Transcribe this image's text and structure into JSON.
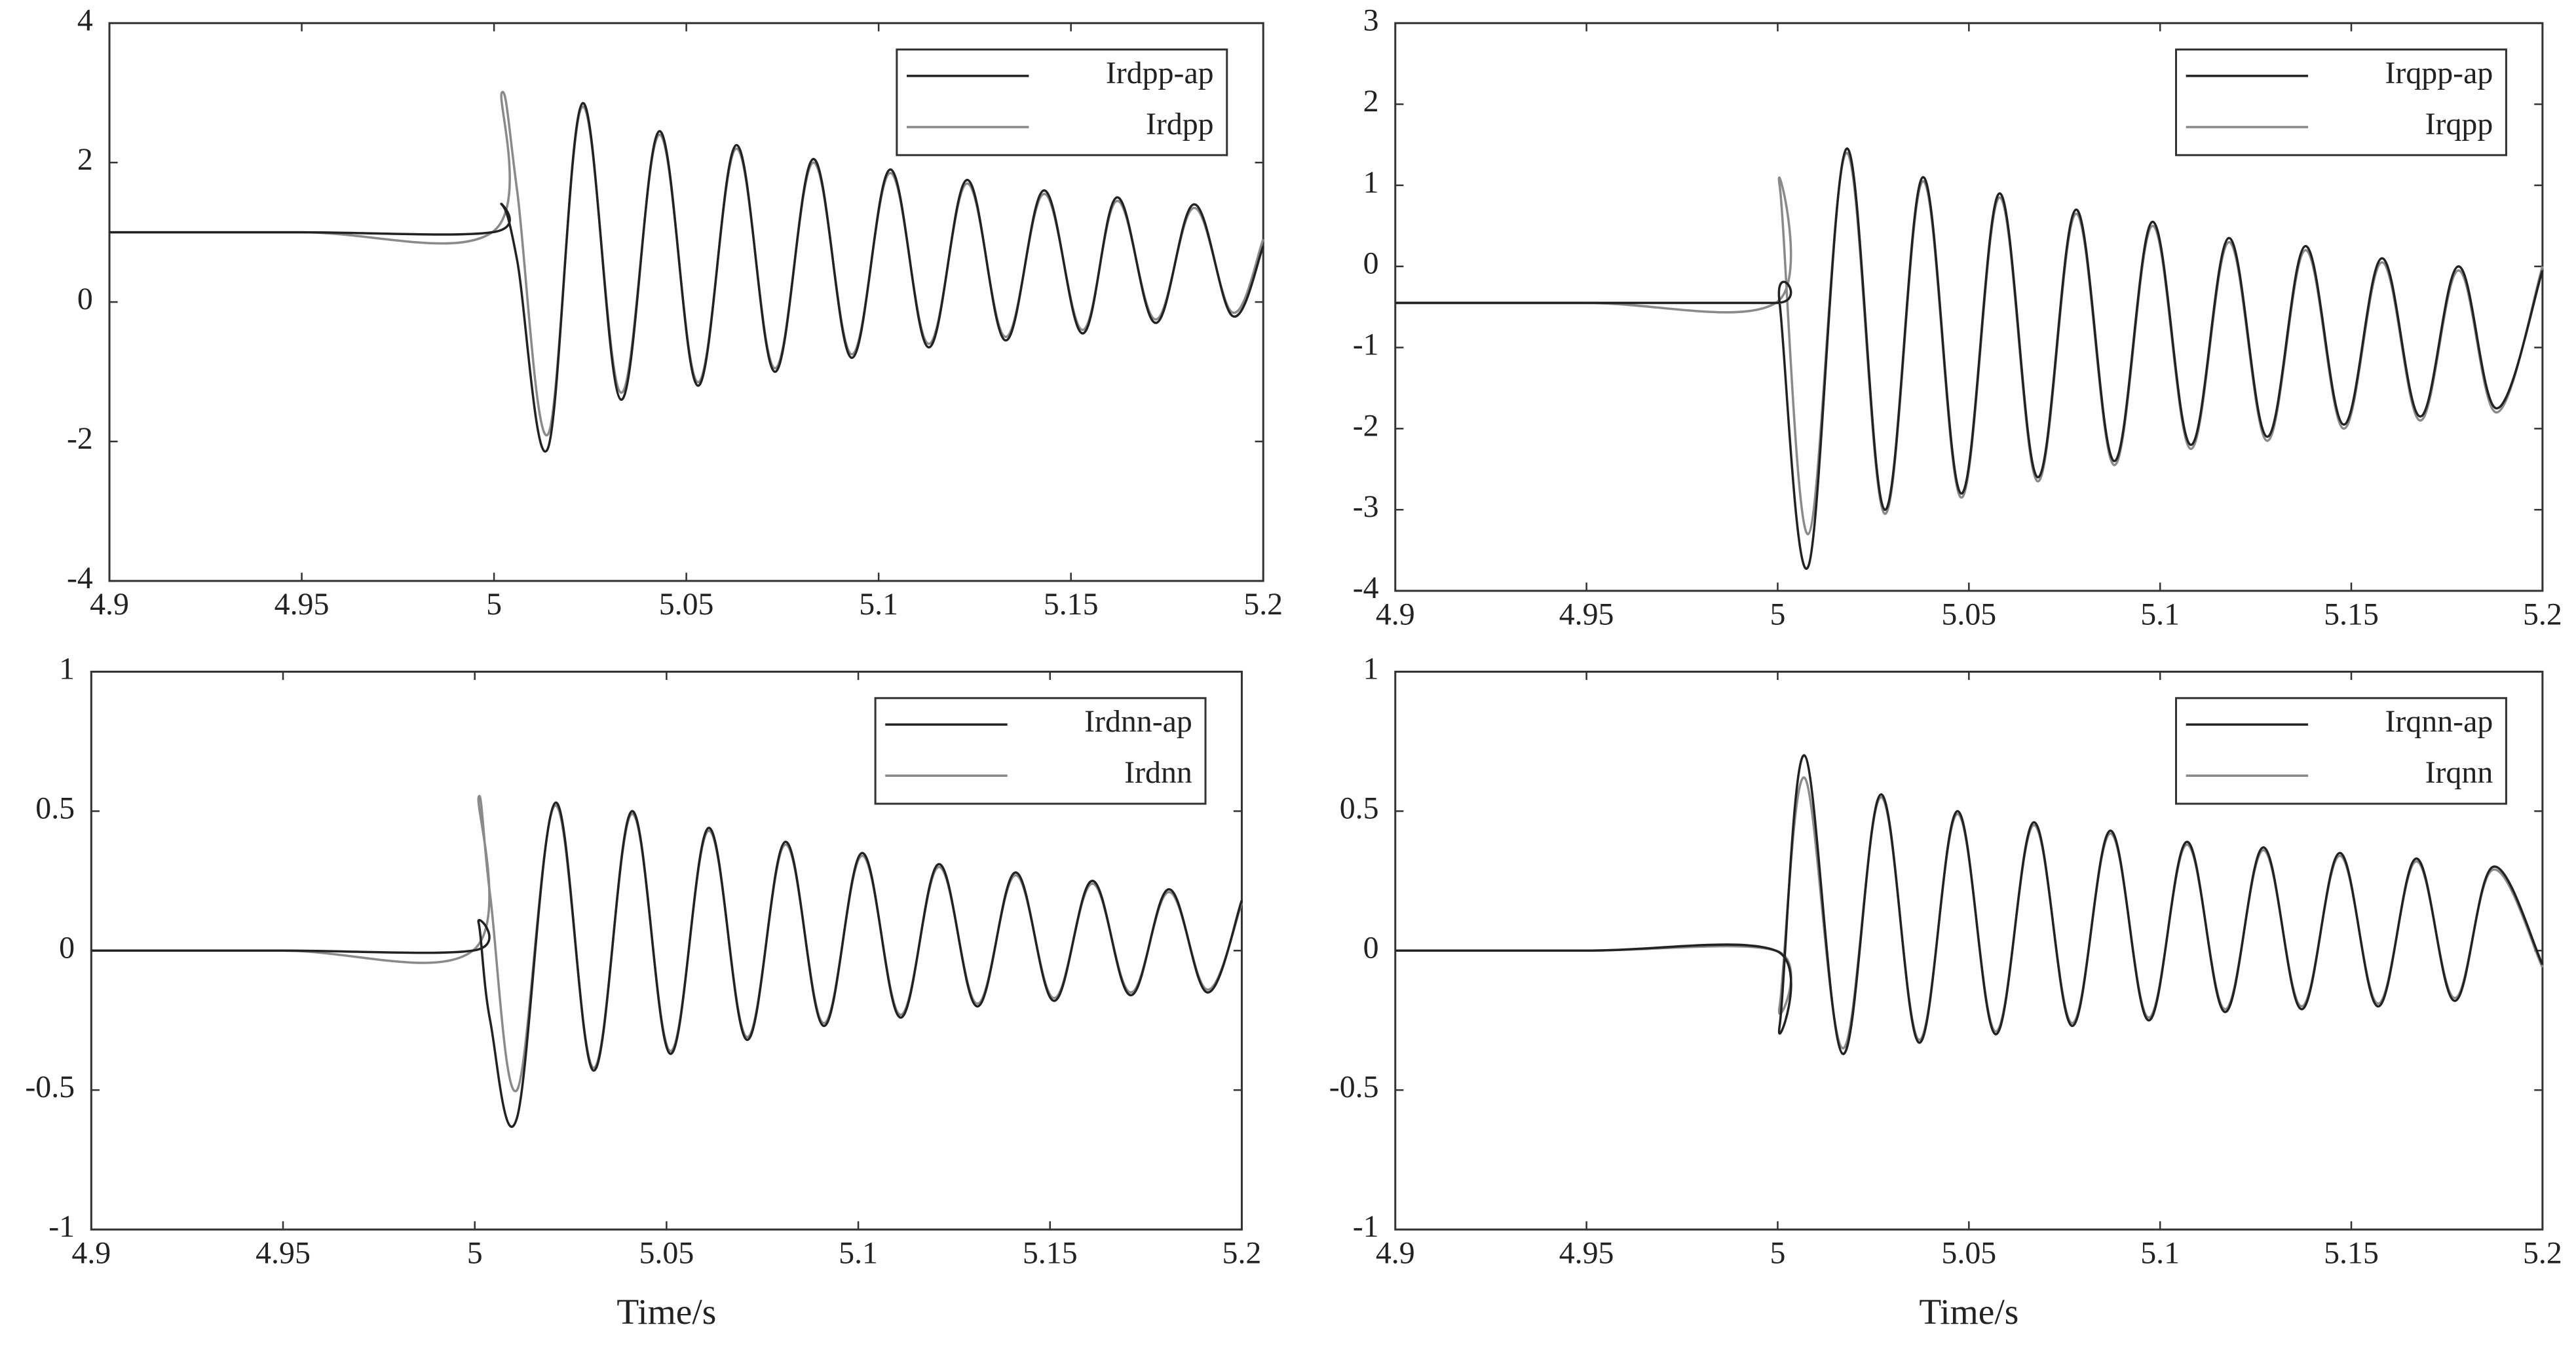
{
  "chart_data": [
    {
      "type": "line",
      "xlim": [
        4.9,
        5.2
      ],
      "xticks": [
        4.9,
        4.95,
        5,
        5.05,
        5.1,
        5.15,
        5.2
      ],
      "ylim": [
        -4,
        4
      ],
      "yticks": [
        -4,
        -2,
        0,
        2,
        4
      ],
      "legend": "upper right",
      "x": [
        4.9,
        4.95,
        4.9995,
        5.002,
        5.006,
        5.014,
        5.023,
        5.033,
        5.043,
        5.053,
        5.063,
        5.073,
        5.083,
        5.093,
        5.103,
        5.113,
        5.123,
        5.133,
        5.143,
        5.153,
        5.162,
        5.172,
        5.182,
        5.192,
        5.2
      ],
      "series": [
        {
          "name": "Irdpp-ap",
          "color": "#222222",
          "values": [
            1.0,
            1.0,
            1.0,
            1.4,
            0.6,
            -2.1,
            2.85,
            -1.4,
            2.45,
            -1.2,
            2.25,
            -1.0,
            2.05,
            -0.8,
            1.9,
            -0.65,
            1.75,
            -0.55,
            1.6,
            -0.45,
            1.5,
            -0.3,
            1.4,
            -0.2,
            0.8
          ]
        },
        {
          "name": "Irdpp",
          "color": "#8a8a8a",
          "values": [
            1.0,
            1.0,
            1.0,
            3.0,
            1.6,
            -1.9,
            2.8,
            -1.3,
            2.4,
            -1.15,
            2.2,
            -0.95,
            2.0,
            -0.75,
            1.85,
            -0.6,
            1.7,
            -0.5,
            1.55,
            -0.4,
            1.45,
            -0.25,
            1.35,
            -0.15,
            0.9
          ]
        }
      ]
    },
    {
      "type": "line",
      "xlim": [
        4.9,
        5.2
      ],
      "xticks": [
        4.9,
        4.95,
        5,
        5.05,
        5.1,
        5.15,
        5.2
      ],
      "ylim": [
        -4,
        3
      ],
      "yticks": [
        -4,
        -3,
        -2,
        -1,
        0,
        1,
        2,
        3
      ],
      "legend": "upper right",
      "x": [
        4.9,
        4.95,
        4.9995,
        5.0005,
        5.008,
        5.018,
        5.028,
        5.038,
        5.048,
        5.058,
        5.068,
        5.078,
        5.088,
        5.098,
        5.108,
        5.118,
        5.128,
        5.138,
        5.148,
        5.158,
        5.168,
        5.178,
        5.188,
        5.2
      ],
      "series": [
        {
          "name": "Irqpp-ap",
          "color": "#222222",
          "values": [
            -0.45,
            -0.45,
            -0.45,
            -0.45,
            -3.7,
            1.45,
            -3.0,
            1.1,
            -2.8,
            0.9,
            -2.6,
            0.7,
            -2.4,
            0.55,
            -2.2,
            0.35,
            -2.1,
            0.25,
            -1.95,
            0.1,
            -1.85,
            0.0,
            -1.75,
            -0.05
          ]
        },
        {
          "name": "Irqpp",
          "color": "#8a8a8a",
          "values": [
            -0.45,
            -0.45,
            -0.45,
            1.0,
            -3.3,
            1.4,
            -3.05,
            1.05,
            -2.85,
            0.85,
            -2.65,
            0.65,
            -2.45,
            0.5,
            -2.25,
            0.3,
            -2.15,
            0.2,
            -2.0,
            0.05,
            -1.9,
            -0.05,
            -1.8,
            0.0
          ]
        }
      ]
    },
    {
      "type": "line",
      "xlim": [
        4.9,
        5.2
      ],
      "xticks": [
        4.9,
        4.95,
        5,
        5.05,
        5.1,
        5.15,
        5.2
      ],
      "ylim": [
        -1,
        1
      ],
      "yticks": [
        -1,
        -0.5,
        0,
        0.5,
        1
      ],
      "legend": "upper right",
      "xlabel": "Time/s",
      "x": [
        4.9,
        4.95,
        4.9995,
        5.001,
        5.004,
        5.011,
        5.021,
        5.031,
        5.041,
        5.051,
        5.061,
        5.071,
        5.081,
        5.091,
        5.101,
        5.111,
        5.121,
        5.131,
        5.141,
        5.151,
        5.161,
        5.171,
        5.181,
        5.191,
        5.2
      ],
      "series": [
        {
          "name": "Irdnn-ap",
          "color": "#222222",
          "values": [
            0,
            0,
            0,
            0.1,
            -0.25,
            -0.6,
            0.53,
            -0.43,
            0.5,
            -0.37,
            0.44,
            -0.32,
            0.39,
            -0.27,
            0.35,
            -0.24,
            0.31,
            -0.2,
            0.28,
            -0.18,
            0.25,
            -0.16,
            0.22,
            -0.15,
            0.18
          ]
        },
        {
          "name": "Irdnn",
          "color": "#8a8a8a",
          "values": [
            0,
            0,
            0,
            0.55,
            0.2,
            -0.5,
            0.52,
            -0.42,
            0.49,
            -0.36,
            0.43,
            -0.31,
            0.38,
            -0.26,
            0.34,
            -0.23,
            0.3,
            -0.19,
            0.27,
            -0.17,
            0.24,
            -0.15,
            0.21,
            -0.14,
            0.17
          ]
        }
      ]
    },
    {
      "type": "line",
      "xlim": [
        4.9,
        5.2
      ],
      "xticks": [
        4.9,
        4.95,
        5,
        5.05,
        5.1,
        5.15,
        5.2
      ],
      "ylim": [
        -1,
        1
      ],
      "yticks": [
        -1,
        -0.5,
        0,
        0.5,
        1
      ],
      "legend": "upper right",
      "xlabel": "Time/s",
      "x": [
        4.9,
        4.95,
        4.9995,
        5.0005,
        5.007,
        5.017,
        5.027,
        5.037,
        5.047,
        5.057,
        5.067,
        5.077,
        5.087,
        5.097,
        5.107,
        5.117,
        5.127,
        5.137,
        5.147,
        5.157,
        5.167,
        5.177,
        5.187,
        5.2
      ],
      "series": [
        {
          "name": "Irqnn-ap",
          "color": "#222222",
          "values": [
            0,
            0,
            0,
            -0.27,
            0.7,
            -0.37,
            0.56,
            -0.33,
            0.5,
            -0.3,
            0.46,
            -0.27,
            0.43,
            -0.25,
            0.39,
            -0.22,
            0.37,
            -0.21,
            0.35,
            -0.2,
            0.33,
            -0.18,
            0.3,
            -0.05
          ]
        },
        {
          "name": "Irqnn",
          "color": "#8a8a8a",
          "values": [
            0,
            0,
            0,
            -0.2,
            0.62,
            -0.35,
            0.55,
            -0.32,
            0.49,
            -0.29,
            0.45,
            -0.26,
            0.42,
            -0.24,
            0.38,
            -0.21,
            0.36,
            -0.2,
            0.34,
            -0.19,
            0.32,
            -0.17,
            0.29,
            -0.06
          ]
        }
      ]
    }
  ]
}
